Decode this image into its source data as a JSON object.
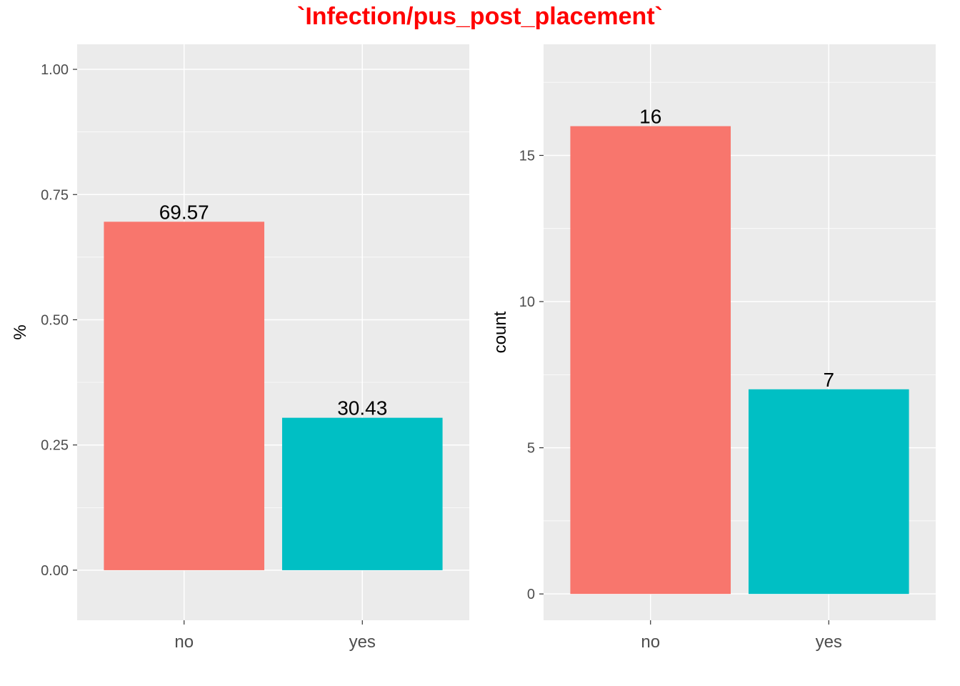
{
  "title": "`Infection/pus_post_placement`",
  "colors": {
    "title": "#ff0000",
    "panel_bg": "#ebebeb",
    "grid": "#ffffff",
    "tick": "#333333"
  },
  "chart_data": [
    {
      "type": "bar",
      "categories": [
        "no",
        "yes"
      ],
      "values": [
        0.6957,
        0.3043
      ],
      "data_labels": [
        "69.57",
        "30.43"
      ],
      "bar_colors": [
        "#f8766d",
        "#00bfc4"
      ],
      "title": "",
      "xlabel": "",
      "ylabel": "%",
      "ylim": [
        -0.1,
        1.05
      ],
      "yticks": [
        0,
        0.25,
        0.5,
        0.75,
        1.0
      ],
      "ytick_labels": [
        "0.00",
        "0.25",
        "0.50",
        "0.75",
        "1.00"
      ],
      "grid": true,
      "legend": "none"
    },
    {
      "type": "bar",
      "categories": [
        "no",
        "yes"
      ],
      "values": [
        16,
        7
      ],
      "data_labels": [
        "16",
        "7"
      ],
      "bar_colors": [
        "#f8766d",
        "#00bfc4"
      ],
      "title": "",
      "xlabel": "",
      "ylabel": "count",
      "ylim": [
        -0.9,
        18.8
      ],
      "yticks": [
        0,
        5,
        10,
        15
      ],
      "ytick_labels": [
        "0",
        "5",
        "10",
        "15"
      ],
      "grid": true,
      "legend": "none"
    }
  ]
}
